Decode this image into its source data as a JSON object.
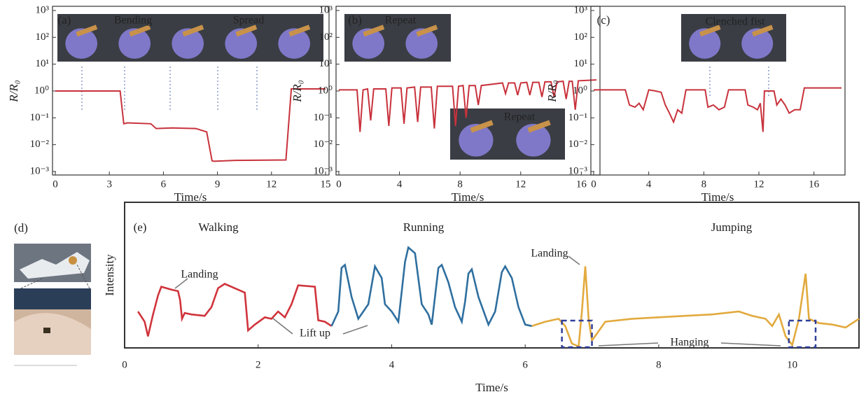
{
  "chart_data": [
    {
      "type": "line",
      "label": "(a)",
      "xlabel": "Time/s",
      "ylabel": "R/R₀",
      "log_y": true,
      "xlim": [
        0,
        15
      ],
      "xticks": [
        0,
        3,
        6,
        9,
        12,
        15
      ],
      "ylim": [
        0.001,
        1000
      ],
      "yticks": [
        {
          "value": 0.001,
          "label": "10⁻³"
        },
        {
          "value": 0.01,
          "label": "10⁻²"
        },
        {
          "value": 0.1,
          "label": "10⁻¹"
        },
        {
          "value": 1,
          "label": "10⁰"
        },
        {
          "value": 10,
          "label": "10¹"
        },
        {
          "value": 100,
          "label": "10²"
        },
        {
          "value": 1000,
          "label": "10³"
        }
      ],
      "annotations": [
        "Bending",
        "Spread"
      ],
      "series": [
        {
          "color": "#c8323c",
          "x": [
            0,
            3.6,
            3.8,
            4,
            5.3,
            5.6,
            6.5,
            7.8,
            8.4,
            8.7,
            8.8,
            10,
            12.8,
            13.1,
            15
          ],
          "values": [
            1,
            1,
            0.06,
            0.065,
            0.06,
            0.04,
            0.042,
            0.04,
            0.03,
            0.0025,
            0.0024,
            0.0026,
            0.0027,
            1.2,
            1.2
          ]
        }
      ]
    },
    {
      "type": "line",
      "label": "(b)",
      "xlabel": "Time/s",
      "ylabel": "R/R₀",
      "log_y": true,
      "xlim": [
        0,
        17
      ],
      "xticks": [
        0,
        4,
        8,
        12,
        16
      ],
      "ylim": [
        0.001,
        1000
      ],
      "yticks": [
        {
          "value": 0.001,
          "label": "10⁻³"
        },
        {
          "value": 0.01,
          "label": "10⁻²"
        },
        {
          "value": 0.1,
          "label": "10⁻¹"
        },
        {
          "value": 1,
          "label": "10⁰"
        },
        {
          "value": 10,
          "label": "10¹"
        },
        {
          "value": 100,
          "label": "10²"
        },
        {
          "value": 1000,
          "label": "10³"
        }
      ],
      "annotations": [
        "Repeat",
        "Repeat"
      ],
      "series": [
        {
          "color": "#c8323c",
          "x": [
            0,
            1.2,
            1.4,
            1.6,
            1.9,
            2.1,
            2.3,
            3.1,
            3.3,
            3.5,
            4.1,
            4.3,
            4.5,
            5.0,
            5.2,
            5.4,
            6.1,
            6.3,
            6.5,
            7.5,
            7.7,
            7.9,
            8.2,
            8.4,
            8.6,
            9.0,
            9.2,
            9.4,
            10.8,
            11.0,
            11.2,
            11.6,
            11.8,
            12.0,
            12.4,
            12.6,
            12.8,
            13.2,
            13.4,
            13.6,
            14.0,
            14.2,
            14.4,
            14.8,
            15.0,
            15.2,
            15.4,
            15.6,
            15.8,
            17
          ],
          "values": [
            1.1,
            1.1,
            0.03,
            1.1,
            1.2,
            0.08,
            1.2,
            1.2,
            0.05,
            1.3,
            1.3,
            0.06,
            1.3,
            1.4,
            0.07,
            1.4,
            1.4,
            0.04,
            1.5,
            1.5,
            0.05,
            1.5,
            1.6,
            0.1,
            1.6,
            1.6,
            0.3,
            1.6,
            2.0,
            0.8,
            2.0,
            2.0,
            0.7,
            2.0,
            2.1,
            0.7,
            2.1,
            2.1,
            0.6,
            2.2,
            2.2,
            0.6,
            2.2,
            2.3,
            0.5,
            2.3,
            2.3,
            0.2,
            2.4,
            2.6
          ]
        }
      ]
    },
    {
      "type": "line",
      "label": "(c)",
      "xlabel": "Time/s",
      "ylabel": "R/R₀",
      "log_y": true,
      "xlim": [
        0,
        18
      ],
      "xticks": [
        0,
        4,
        8,
        12,
        16
      ],
      "ylim": [
        0.001,
        1000
      ],
      "yticks": [
        {
          "value": 0.001,
          "label": "10⁻³"
        },
        {
          "value": 0.01,
          "label": "10⁻²"
        },
        {
          "value": 0.1,
          "label": "10⁻¹"
        },
        {
          "value": 1,
          "label": "10⁰"
        },
        {
          "value": 10,
          "label": "10¹"
        },
        {
          "value": 100,
          "label": "10²"
        },
        {
          "value": 1000,
          "label": "10³"
        }
      ],
      "annotations": [
        "Clenched fist"
      ],
      "series": [
        {
          "color": "#c8323c",
          "x": [
            0,
            2.3,
            2.6,
            3.0,
            3.3,
            3.6,
            4.0,
            4.5,
            4.9,
            5.2,
            5.5,
            5.8,
            6.1,
            6.4,
            6.7,
            8.1,
            8.3,
            8.7,
            9.1,
            9.5,
            9.8,
            11.0,
            11.2,
            11.6,
            11.9,
            12.1,
            12.3,
            12.4,
            13.1,
            13.3,
            13.6,
            13.9,
            14.2,
            14.6,
            15.0,
            15.3,
            18
          ],
          "values": [
            1.1,
            1.1,
            0.3,
            0.25,
            0.35,
            0.2,
            1.1,
            1.0,
            0.9,
            0.3,
            0.15,
            0.07,
            0.2,
            0.15,
            1.1,
            1.1,
            0.25,
            0.3,
            0.2,
            0.25,
            1.1,
            1.1,
            0.3,
            0.25,
            0.2,
            0.35,
            0.03,
            1.0,
            1.0,
            0.3,
            0.5,
            0.3,
            0.15,
            0.2,
            0.2,
            1.3,
            1.3
          ]
        }
      ]
    },
    {
      "type": "image",
      "label": "(d)"
    },
    {
      "type": "line",
      "label": "(e)",
      "xlabel": "Time/s",
      "ylabel": "Intensity",
      "xlim": [
        0,
        11
      ],
      "xticks": [
        0,
        2,
        4,
        6,
        8,
        10
      ],
      "ylim": [
        0,
        10
      ],
      "annotations": [
        "Landing",
        "Lift up",
        "Landing",
        "Hanging"
      ],
      "series": [
        {
          "name": "Walking",
          "color": "#d0343c",
          "x": [
            0.2,
            0.3,
            0.35,
            0.42,
            0.5,
            0.55,
            0.7,
            0.8,
            0.83,
            0.86,
            0.9,
            1.0,
            1.2,
            1.3,
            1.4,
            1.5,
            1.7,
            1.8,
            1.85,
            1.95,
            2.1,
            2.2,
            2.3,
            2.4,
            2.5,
            2.6,
            2.85,
            2.9,
            3.0,
            3.1
          ],
          "values": [
            2.5,
            1.8,
            0.8,
            2.2,
            3.6,
            4.2,
            4.0,
            3.9,
            3.3,
            2.0,
            2.4,
            2.3,
            2.2,
            2.8,
            4.1,
            4.4,
            4.0,
            3.8,
            1.2,
            1.6,
            2.1,
            2.0,
            2.5,
            2.1,
            3.0,
            4.3,
            4.2,
            1.9,
            1.8,
            1.5
          ]
        },
        {
          "name": "Running",
          "color": "#2f6f9f",
          "x": [
            3.1,
            3.2,
            3.25,
            3.3,
            3.4,
            3.5,
            3.65,
            3.75,
            3.85,
            3.9,
            4.0,
            4.1,
            4.2,
            4.25,
            4.35,
            4.45,
            4.55,
            4.6,
            4.7,
            4.75,
            4.85,
            4.95,
            5.05,
            5.1,
            5.15,
            5.2,
            5.3,
            5.45,
            5.55,
            5.65,
            5.7,
            5.8,
            5.9,
            6.0,
            6.1
          ],
          "values": [
            1.5,
            2.5,
            5.5,
            5.7,
            3.5,
            2.0,
            3.0,
            5.6,
            4.8,
            3.0,
            2.5,
            1.8,
            5.9,
            6.9,
            6.5,
            3.0,
            2.3,
            1.6,
            5.5,
            5.7,
            4.5,
            2.8,
            1.8,
            3.2,
            5.1,
            5.4,
            3.5,
            1.6,
            2.5,
            5.2,
            5.6,
            4.8,
            2.8,
            1.6,
            1.5
          ]
        },
        {
          "name": "Jumping",
          "color": "#e2aa3e",
          "x": [
            6.1,
            6.3,
            6.5,
            6.6,
            6.7,
            6.8,
            6.85,
            6.9,
            6.95,
            7.0,
            7.2,
            7.6,
            8.0,
            8.4,
            8.8,
            9.2,
            9.4,
            9.6,
            9.7,
            9.8,
            9.9,
            10.0,
            10.1,
            10.2,
            10.25,
            10.4,
            10.6,
            10.8,
            11.0
          ],
          "values": [
            1.5,
            1.8,
            2.0,
            1.5,
            0.3,
            0.1,
            2.5,
            5.6,
            2.0,
            0.5,
            1.8,
            2.0,
            2.1,
            2.2,
            2.3,
            2.5,
            2.2,
            2.0,
            1.5,
            2.3,
            0.8,
            0.2,
            2.0,
            5.1,
            2.0,
            1.7,
            1.6,
            1.4,
            2.0
          ]
        }
      ]
    }
  ]
}
